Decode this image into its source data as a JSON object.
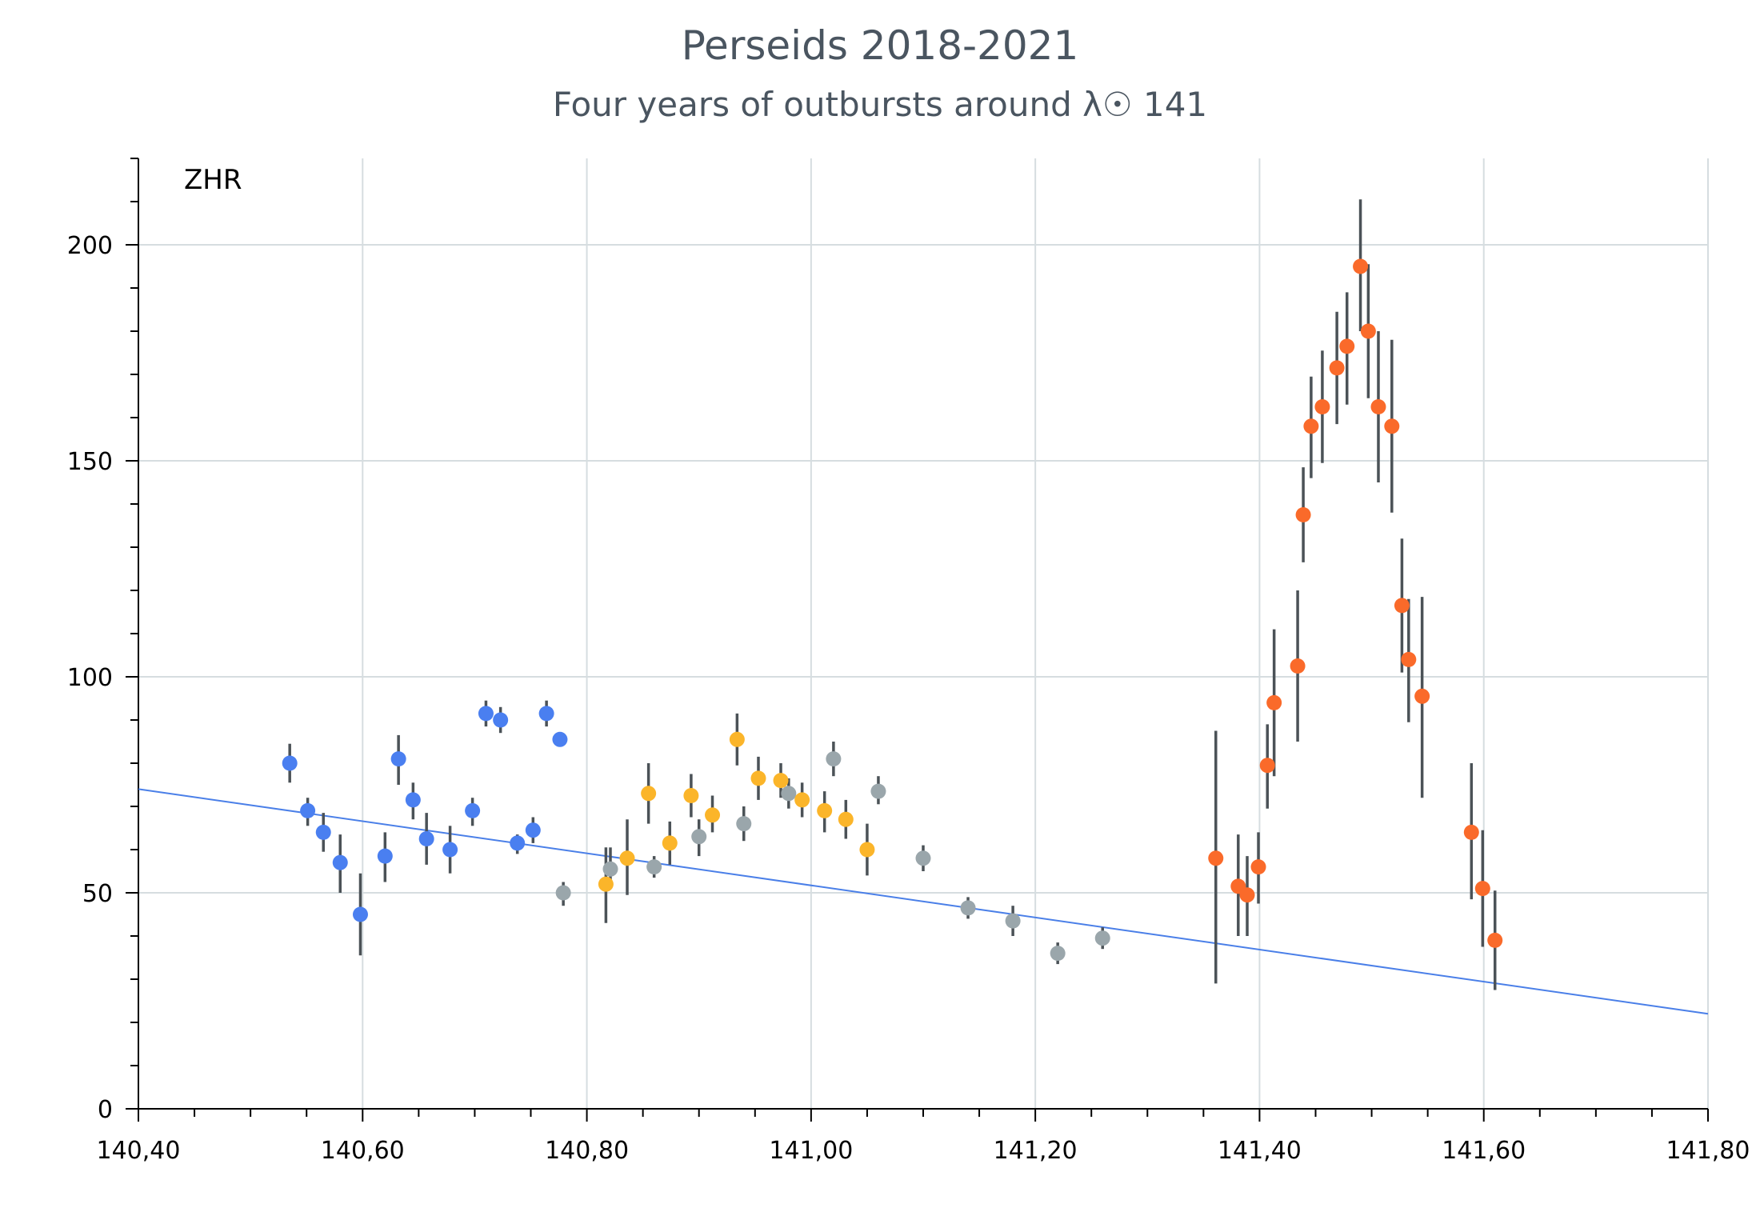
{
  "chart_data": {
    "type": "scatter",
    "title": "Perseids 2018-2021",
    "subtitle": "Four years of outbursts around λ☉ 141",
    "ylabel": "ZHR",
    "xlabel": "",
    "xlim": [
      140.4,
      141.8
    ],
    "ylim": [
      0,
      220
    ],
    "x_ticks": [
      140.4,
      140.6,
      140.8,
      141.0,
      141.2,
      141.4,
      141.6,
      141.8
    ],
    "x_tick_labels": [
      "140,40",
      "140,60",
      "140,80",
      "141,00",
      "141,20",
      "141,40",
      "141,60",
      "141,80"
    ],
    "y_ticks": [
      0,
      50,
      100,
      150,
      200
    ],
    "y_tick_labels": [
      "0",
      "50",
      "100",
      "150",
      "200"
    ],
    "grid": true,
    "legend": "none",
    "trend_line": {
      "x": [
        140.4,
        141.8
      ],
      "y": [
        74,
        22
      ],
      "color": "#4a7fe8"
    },
    "series": [
      {
        "color": "#4a7ff0",
        "points": [
          {
            "x": 140.535,
            "y": 80,
            "lo": 75.5,
            "hi": 84.5
          },
          {
            "x": 140.551,
            "y": 69,
            "lo": 65.5,
            "hi": 72
          },
          {
            "x": 140.565,
            "y": 64,
            "lo": 59.5,
            "hi": 68.5
          },
          {
            "x": 140.58,
            "y": 57,
            "lo": 50,
            "hi": 63.5
          },
          {
            "x": 140.598,
            "y": 45,
            "lo": 35.5,
            "hi": 54.5
          },
          {
            "x": 140.62,
            "y": 58.5,
            "lo": 52.5,
            "hi": 64
          },
          {
            "x": 140.632,
            "y": 81,
            "lo": 75,
            "hi": 86.5
          },
          {
            "x": 140.645,
            "y": 71.5,
            "lo": 67,
            "hi": 75.5
          },
          {
            "x": 140.657,
            "y": 62.5,
            "lo": 56.5,
            "hi": 68.5
          },
          {
            "x": 140.678,
            "y": 60,
            "lo": 54.5,
            "hi": 65.5
          },
          {
            "x": 140.698,
            "y": 69,
            "lo": 65.5,
            "hi": 72
          },
          {
            "x": 140.71,
            "y": 91.5,
            "lo": 88.5,
            "hi": 94.5
          },
          {
            "x": 140.723,
            "y": 90,
            "lo": 87,
            "hi": 93
          },
          {
            "x": 140.738,
            "y": 61.5,
            "lo": 59,
            "hi": 63.5
          },
          {
            "x": 140.752,
            "y": 64.5,
            "lo": 61.5,
            "hi": 67.5
          },
          {
            "x": 140.764,
            "y": 91.5,
            "lo": 88.5,
            "hi": 94.5
          },
          {
            "x": 140.776,
            "y": 85.5,
            "lo": 84,
            "hi": 87
          }
        ]
      },
      {
        "color": "#9aa6ab",
        "points": [
          {
            "x": 140.779,
            "y": 50,
            "lo": 47,
            "hi": 52.5
          },
          {
            "x": 140.821,
            "y": 55.5,
            "lo": 51,
            "hi": 60.5
          },
          {
            "x": 140.86,
            "y": 56,
            "lo": 53.5,
            "hi": 58.5
          },
          {
            "x": 140.9,
            "y": 63,
            "lo": 58.5,
            "hi": 67
          },
          {
            "x": 140.94,
            "y": 66,
            "lo": 62,
            "hi": 70
          },
          {
            "x": 140.98,
            "y": 73,
            "lo": 69.5,
            "hi": 76.5
          },
          {
            "x": 141.02,
            "y": 81,
            "lo": 77,
            "hi": 85
          },
          {
            "x": 141.06,
            "y": 73.5,
            "lo": 70.5,
            "hi": 77
          },
          {
            "x": 141.1,
            "y": 58,
            "lo": 55,
            "hi": 61
          },
          {
            "x": 141.14,
            "y": 46.5,
            "lo": 44,
            "hi": 49
          },
          {
            "x": 141.18,
            "y": 43.5,
            "lo": 40,
            "hi": 47
          },
          {
            "x": 141.22,
            "y": 36,
            "lo": 33.5,
            "hi": 38.5
          },
          {
            "x": 141.26,
            "y": 39.5,
            "lo": 37,
            "hi": 42
          }
        ]
      },
      {
        "color": "#fbb52a",
        "points": [
          {
            "x": 140.817,
            "y": 52,
            "lo": 43,
            "hi": 60.5
          },
          {
            "x": 140.836,
            "y": 58,
            "lo": 49.5,
            "hi": 67
          },
          {
            "x": 140.855,
            "y": 73,
            "lo": 66,
            "hi": 80
          },
          {
            "x": 140.874,
            "y": 61.5,
            "lo": 56.5,
            "hi": 66.5
          },
          {
            "x": 140.893,
            "y": 72.5,
            "lo": 67.5,
            "hi": 77.5
          },
          {
            "x": 140.912,
            "y": 68,
            "lo": 64,
            "hi": 72.5
          },
          {
            "x": 140.934,
            "y": 85.5,
            "lo": 79.5,
            "hi": 91.5
          },
          {
            "x": 140.953,
            "y": 76.5,
            "lo": 71.5,
            "hi": 81.5
          },
          {
            "x": 140.973,
            "y": 76,
            "lo": 72,
            "hi": 80
          },
          {
            "x": 140.992,
            "y": 71.5,
            "lo": 67.5,
            "hi": 75.5
          },
          {
            "x": 141.012,
            "y": 69,
            "lo": 64,
            "hi": 73.5
          },
          {
            "x": 141.031,
            "y": 67,
            "lo": 62.5,
            "hi": 71.5
          },
          {
            "x": 141.05,
            "y": 60,
            "lo": 54,
            "hi": 66
          }
        ]
      },
      {
        "color": "#fa6a2a",
        "points": [
          {
            "x": 141.361,
            "y": 58,
            "lo": 29,
            "hi": 87.5
          },
          {
            "x": 141.381,
            "y": 51.5,
            "lo": 40,
            "hi": 63.5
          },
          {
            "x": 141.389,
            "y": 49.5,
            "lo": 40,
            "hi": 58.5
          },
          {
            "x": 141.399,
            "y": 56,
            "lo": 47.5,
            "hi": 64
          },
          {
            "x": 141.407,
            "y": 79.5,
            "lo": 69.5,
            "hi": 89
          },
          {
            "x": 141.413,
            "y": 94,
            "lo": 77,
            "hi": 111
          },
          {
            "x": 141.434,
            "y": 102.5,
            "lo": 85,
            "hi": 120
          },
          {
            "x": 141.439,
            "y": 137.5,
            "lo": 126.5,
            "hi": 148.5
          },
          {
            "x": 141.446,
            "y": 158,
            "lo": 146,
            "hi": 169.5
          },
          {
            "x": 141.456,
            "y": 162.5,
            "lo": 149.5,
            "hi": 175.5
          },
          {
            "x": 141.469,
            "y": 171.5,
            "lo": 158.5,
            "hi": 184.5
          },
          {
            "x": 141.478,
            "y": 176.5,
            "lo": 163,
            "hi": 189
          },
          {
            "x": 141.49,
            "y": 195,
            "lo": 180,
            "hi": 210.5
          },
          {
            "x": 141.497,
            "y": 180,
            "lo": 164.5,
            "hi": 195.5
          },
          {
            "x": 141.506,
            "y": 162.5,
            "lo": 145,
            "hi": 180
          },
          {
            "x": 141.518,
            "y": 158,
            "lo": 138,
            "hi": 178
          },
          {
            "x": 141.527,
            "y": 116.5,
            "lo": 101,
            "hi": 132
          },
          {
            "x": 141.533,
            "y": 104,
            "lo": 89.5,
            "hi": 118
          },
          {
            "x": 141.545,
            "y": 95.5,
            "lo": 72,
            "hi": 118.5
          },
          {
            "x": 141.589,
            "y": 64,
            "lo": 48.5,
            "hi": 80
          },
          {
            "x": 141.599,
            "y": 51,
            "lo": 37.5,
            "hi": 64.5
          },
          {
            "x": 141.61,
            "y": 39,
            "lo": 27.5,
            "hi": 50.5
          }
        ]
      }
    ]
  }
}
